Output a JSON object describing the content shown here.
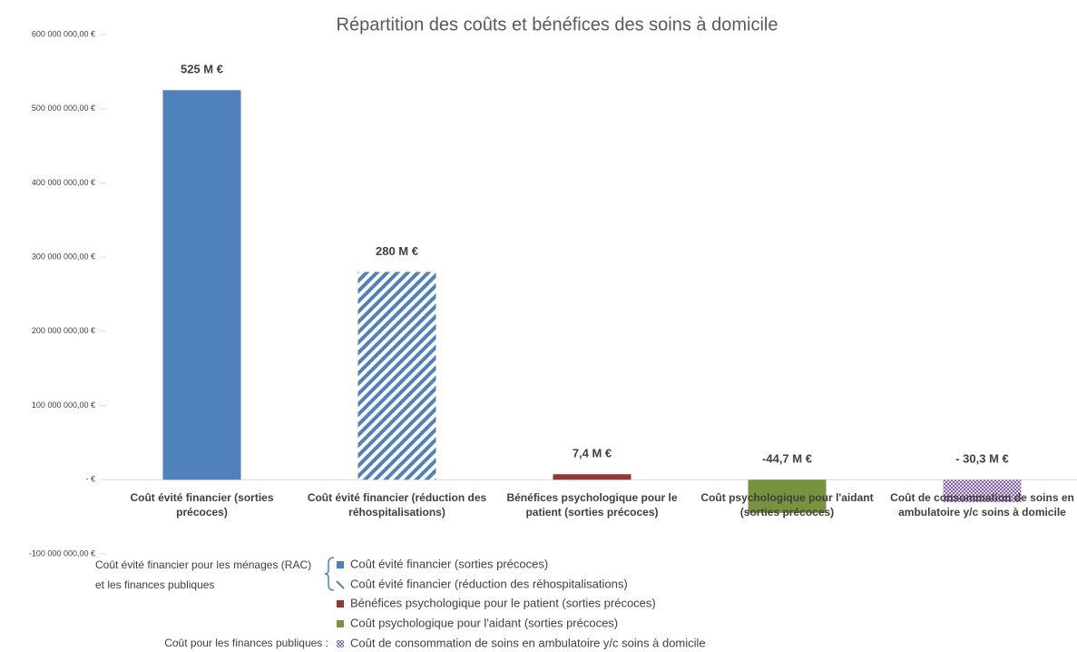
{
  "chart_data": {
    "type": "bar",
    "title": "Répartition des coûts et bénéfices des soins à domicile",
    "categories": [
      "Coût évité financier (sorties précoces)",
      "Coût évité financier (réduction des réhospitalisations)",
      "Bénéfices psychologique pour le patient (sorties précoces)",
      "Coût psychologique pour l'aidant (sorties précoces)",
      "Coût de consommation de soins en ambulatoire y/c soins à domicile"
    ],
    "values": [
      525000000,
      280000000,
      7400000,
      -44700000,
      -30300000
    ],
    "value_labels": [
      "525 M €",
      "280 M €",
      "7,4 M €",
      "-44,7 M €",
      "- 30,3 M €"
    ],
    "colors": [
      "#4f81bd",
      "#4f81bd",
      "#953735",
      "#77933c",
      "#8064a2"
    ],
    "patterns": [
      "solid",
      "hatch",
      "solid",
      "solid",
      "dots"
    ],
    "ylim": [
      -100000000,
      600000000
    ],
    "yticks": [
      {
        "value": -100000000,
        "label": "-100 000 000,00 €"
      },
      {
        "value": 0,
        "label": "-   €"
      },
      {
        "value": 100000000,
        "label": "100 000 000,00 €"
      },
      {
        "value": 200000000,
        "label": "200 000 000,00 €"
      },
      {
        "value": 300000000,
        "label": "300 000 000,00 €"
      },
      {
        "value": 400000000,
        "label": "400 000 000,00 €"
      },
      {
        "value": 500000000,
        "label": "500 000 000,00 €"
      },
      {
        "value": 600000000,
        "label": "600 000 000,00 €"
      }
    ],
    "grid": false,
    "legend_groups": [
      {
        "label": "Coût évité financier pour les ménages (RAC) et les finances publiques",
        "members": [
          0,
          1
        ]
      },
      {
        "label": "Coût pour les finances publiques :",
        "members": [
          4
        ]
      }
    ]
  }
}
